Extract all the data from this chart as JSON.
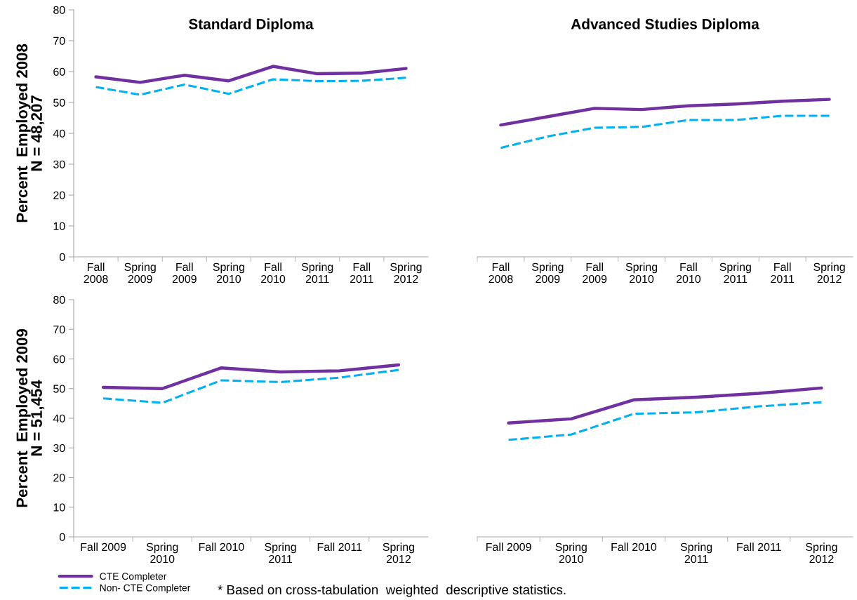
{
  "chart_data": [
    {
      "type": "line",
      "title": "Standard Diploma",
      "ylabel": "Percent  Employed 2008\nN = 48,207",
      "categories": [
        "Fall\n2008",
        "Spring\n2009",
        "Fall\n2009",
        "Spring\n2010",
        "Fall\n2010",
        "Spring\n2011",
        "Fall\n2011",
        "Spring\n2012"
      ],
      "series": [
        {
          "name": "CTE Completer",
          "color": "#7030a0",
          "line_style": "solid",
          "values": [
            58.3,
            56.5,
            58.8,
            57.0,
            61.7,
            59.3,
            59.5,
            61.0
          ]
        },
        {
          "name": "Non- CTE Completer",
          "color": "#00b0f0",
          "line_style": "dashed",
          "values": [
            55.0,
            52.5,
            55.8,
            52.8,
            57.5,
            56.9,
            57.0,
            58.0
          ]
        }
      ],
      "ylim": [
        0,
        80
      ],
      "yticks": [
        0,
        10,
        20,
        30,
        40,
        50,
        60,
        70,
        80
      ],
      "grid": false,
      "legend": "bottom"
    },
    {
      "type": "line",
      "title": "Advanced Studies Diploma",
      "categories": [
        "Fall\n2008",
        "Spring\n2009",
        "Fall\n2009",
        "Spring\n2010",
        "Fall\n2010",
        "Spring\n2011",
        "Fall\n2011",
        "Spring\n2012"
      ],
      "series": [
        {
          "color": "#7030a0",
          "line_style": "solid",
          "values": [
            42.7,
            45.4,
            48.1,
            47.7,
            48.9,
            49.5,
            50.4,
            51.0
          ]
        },
        {
          "color": "#00b0f0",
          "line_style": "dashed",
          "values": [
            35.3,
            39.0,
            41.8,
            42.1,
            44.3,
            44.3,
            45.7,
            45.7
          ]
        }
      ],
      "ylim": [
        0,
        80
      ],
      "tick_labels": "x",
      "grid": false,
      "legend": false
    },
    {
      "type": "line",
      "ylabel": "Percent  Employed 2009\nN = 51,454",
      "categories": [
        "Fall 2009",
        "Spring\n2010",
        "Fall 2010",
        "Spring\n2011",
        "Fall 2011",
        "Spring\n2012"
      ],
      "series": [
        {
          "color": "#7030a0",
          "line_style": "solid",
          "values": [
            50.4,
            50.0,
            57.0,
            55.6,
            56.0,
            58.0
          ]
        },
        {
          "color": "#00b0f0",
          "line_style": "dashed",
          "values": [
            46.7,
            45.2,
            52.8,
            52.2,
            53.7,
            56.3
          ]
        }
      ],
      "ylim": [
        0,
        80
      ],
      "yticks": [
        0,
        10,
        20,
        30,
        40,
        50,
        60,
        70,
        80
      ],
      "grid": false,
      "legend": false,
      "annotations": [
        "* Based on cross-tabulation  weighted  descriptive statistics."
      ]
    },
    {
      "type": "line",
      "categories": [
        "Fall 2009",
        "Spring\n2010",
        "Fall 2010",
        "Spring\n2011",
        "Fall 2011",
        "Spring\n2012"
      ],
      "series": [
        {
          "color": "#7030a0",
          "line_style": "solid",
          "values": [
            38.4,
            39.8,
            46.2,
            47.1,
            48.4,
            50.2
          ]
        },
        {
          "color": "#00b0f0",
          "line_style": "dashed",
          "values": [
            32.7,
            34.5,
            41.5,
            42.0,
            44.0,
            45.4
          ]
        }
      ],
      "ylim": [
        0,
        80
      ],
      "tick_labels": "x",
      "grid": false,
      "legend": false
    }
  ]
}
